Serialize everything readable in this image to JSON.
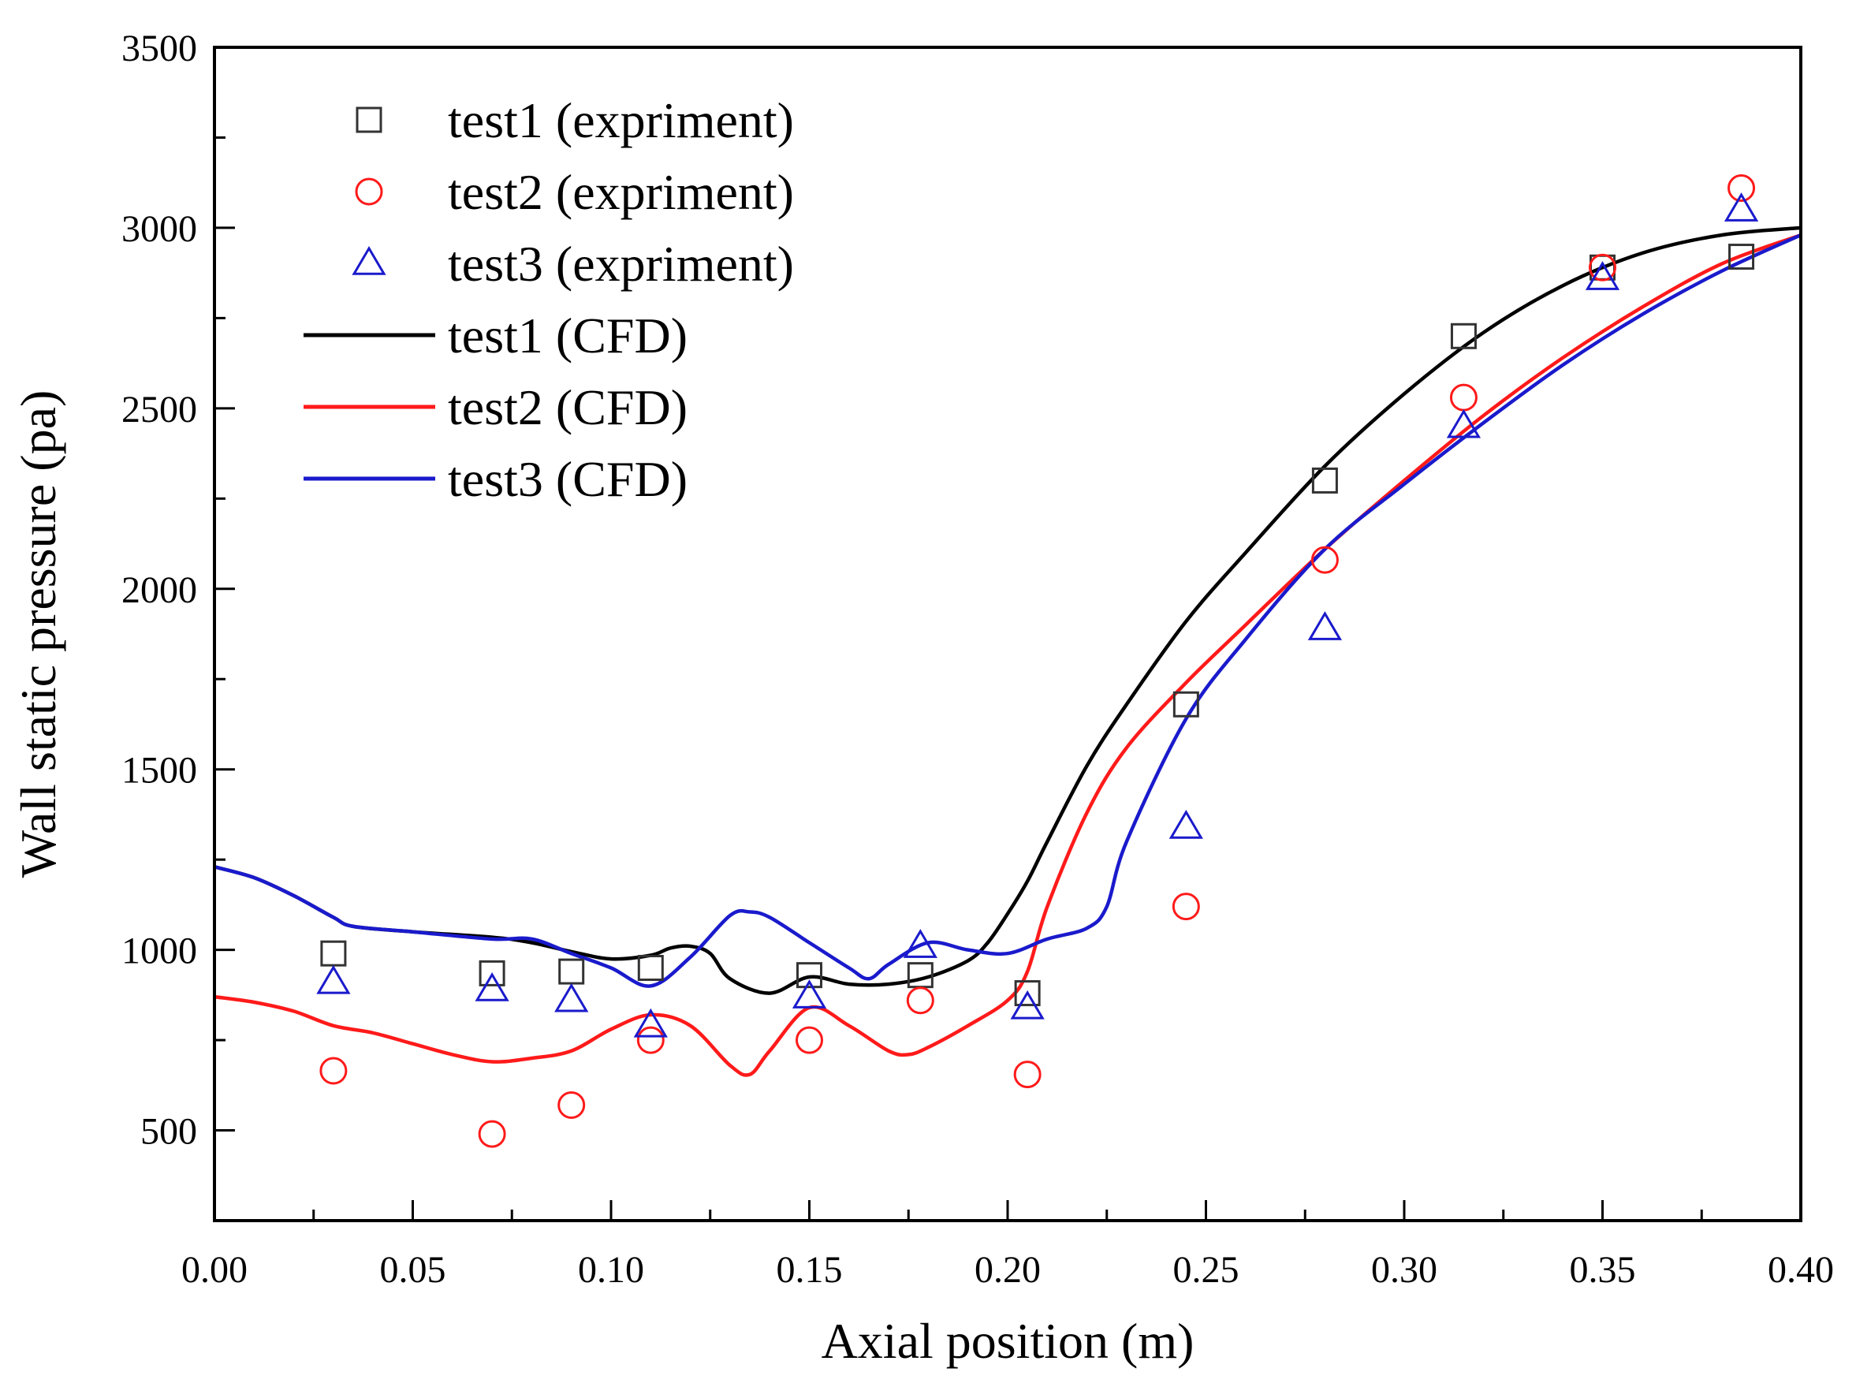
{
  "chart_data": {
    "type": "scatter+line",
    "title": "",
    "xlabel": "Axial position (m)",
    "ylabel": "Wall static pressure (pa)",
    "xlim": [
      0.0,
      0.4
    ],
    "ylim": [
      250,
      3500
    ],
    "xticks": [
      0.0,
      0.05,
      0.1,
      0.15,
      0.2,
      0.25,
      0.3,
      0.35,
      0.4
    ],
    "xtick_labels": [
      "0.00",
      "0.05",
      "0.10",
      "0.15",
      "0.20",
      "0.25",
      "0.30",
      "0.35",
      "0.40"
    ],
    "yticks": [
      500,
      1000,
      1500,
      2000,
      2500,
      3000,
      3500
    ],
    "ytick_labels": [
      "500",
      "1000",
      "1500",
      "2000",
      "2500",
      "3000",
      "3500"
    ],
    "legend_position": "top-left",
    "colors": {
      "test1": "#000000",
      "test2": "#ff1a1a",
      "test3": "#1a1acc"
    },
    "series": [
      {
        "name": "test1 (expriment)",
        "kind": "scatter",
        "marker": "square",
        "color": "#333333",
        "x": [
          0.03,
          0.07,
          0.09,
          0.11,
          0.15,
          0.178,
          0.205,
          0.245,
          0.28,
          0.315,
          0.35,
          0.385
        ],
        "y": [
          990,
          935,
          940,
          950,
          930,
          930,
          880,
          1680,
          2300,
          2700,
          2890,
          2920
        ]
      },
      {
        "name": "test2 (expriment)",
        "kind": "scatter",
        "marker": "circle",
        "color": "#ff1a1a",
        "x": [
          0.03,
          0.07,
          0.09,
          0.11,
          0.15,
          0.178,
          0.205,
          0.245,
          0.28,
          0.315,
          0.35,
          0.385
        ],
        "y": [
          665,
          490,
          570,
          750,
          750,
          860,
          655,
          1120,
          2080,
          2530,
          2890,
          3110
        ]
      },
      {
        "name": "test3 (expriment)",
        "kind": "scatter",
        "marker": "triangle",
        "color": "#1a1acc",
        "x": [
          0.03,
          0.07,
          0.09,
          0.11,
          0.15,
          0.178,
          0.205,
          0.245,
          0.28,
          0.315,
          0.35,
          0.385
        ],
        "y": [
          910,
          890,
          860,
          790,
          870,
          1010,
          840,
          1340,
          1890,
          2450,
          2860,
          3050
        ]
      },
      {
        "name": "test1 (CFD)",
        "kind": "line",
        "color": "#000000",
        "x": [
          0.0,
          0.01,
          0.02,
          0.03,
          0.035,
          0.05,
          0.07,
          0.08,
          0.09,
          0.1,
          0.11,
          0.115,
          0.12,
          0.125,
          0.13,
          0.14,
          0.15,
          0.16,
          0.17,
          0.18,
          0.19,
          0.195,
          0.2,
          0.205,
          0.21,
          0.22,
          0.23,
          0.245,
          0.26,
          0.28,
          0.3,
          0.32,
          0.34,
          0.36,
          0.38,
          0.4
        ],
        "y": [
          1230,
          1200,
          1150,
          1090,
          1065,
          1050,
          1035,
          1020,
          995,
          975,
          985,
          1005,
          1010,
          990,
          920,
          880,
          925,
          905,
          905,
          925,
          970,
          1020,
          1100,
          1190,
          1300,
          1510,
          1680,
          1910,
          2100,
          2340,
          2540,
          2710,
          2840,
          2930,
          2980,
          3000
        ]
      },
      {
        "name": "test2 (CFD)",
        "kind": "line",
        "color": "#ff1a1a",
        "x": [
          0.0,
          0.01,
          0.02,
          0.03,
          0.04,
          0.05,
          0.06,
          0.07,
          0.08,
          0.09,
          0.1,
          0.11,
          0.12,
          0.13,
          0.135,
          0.14,
          0.15,
          0.16,
          0.17,
          0.175,
          0.18,
          0.19,
          0.2,
          0.205,
          0.21,
          0.22,
          0.23,
          0.245,
          0.26,
          0.28,
          0.3,
          0.32,
          0.34,
          0.36,
          0.38,
          0.4
        ],
        "y": [
          870,
          855,
          830,
          790,
          770,
          740,
          710,
          690,
          700,
          720,
          780,
          820,
          790,
          680,
          655,
          720,
          840,
          790,
          720,
          710,
          730,
          790,
          860,
          940,
          1120,
          1380,
          1560,
          1740,
          1900,
          2110,
          2300,
          2480,
          2640,
          2780,
          2900,
          2980
        ]
      },
      {
        "name": "test3 (CFD)",
        "kind": "line",
        "color": "#1a1acc",
        "x": [
          0.0,
          0.01,
          0.02,
          0.03,
          0.035,
          0.05,
          0.07,
          0.08,
          0.09,
          0.1,
          0.11,
          0.12,
          0.13,
          0.135,
          0.14,
          0.15,
          0.16,
          0.165,
          0.17,
          0.18,
          0.19,
          0.2,
          0.21,
          0.22,
          0.225,
          0.23,
          0.245,
          0.26,
          0.28,
          0.3,
          0.32,
          0.34,
          0.36,
          0.38,
          0.4
        ],
        "y": [
          1230,
          1200,
          1150,
          1090,
          1065,
          1050,
          1030,
          1030,
          990,
          950,
          900,
          980,
          1095,
          1105,
          1090,
          1020,
          950,
          920,
          960,
          1020,
          1000,
          990,
          1030,
          1060,
          1120,
          1300,
          1640,
          1860,
          2110,
          2290,
          2460,
          2620,
          2760,
          2880,
          2980
        ]
      }
    ]
  }
}
